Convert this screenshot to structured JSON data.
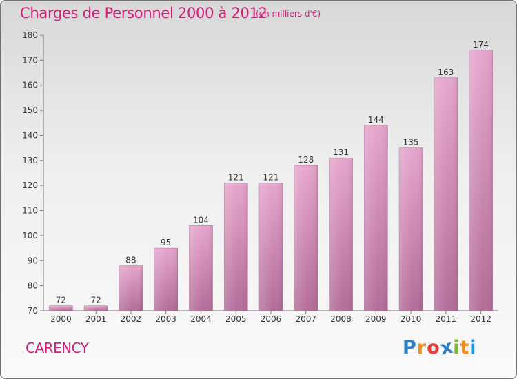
{
  "header": {
    "title": "Charges de Personnel 2000 à 2012",
    "subtitle": "(en milliers d'€)"
  },
  "footer": {
    "commune": "CARENCY",
    "logo_text": "Proxiti"
  },
  "colors": {
    "accent": "#d81b7a",
    "bar_top": "#e6a5cc",
    "bar_bottom": "#b26d98"
  },
  "chart_data": {
    "type": "bar",
    "title": "Charges de Personnel 2000 à 2012",
    "subtitle": "(en milliers d'€)",
    "xlabel": "",
    "ylabel": "",
    "categories": [
      "2000",
      "2001",
      "2002",
      "2003",
      "2004",
      "2005",
      "2006",
      "2007",
      "2008",
      "2009",
      "2010",
      "2011",
      "2012"
    ],
    "values": [
      72,
      72,
      88,
      95,
      104,
      121,
      121,
      128,
      131,
      144,
      135,
      163,
      174
    ],
    "ylim": [
      70,
      180
    ],
    "yticks": [
      70,
      80,
      90,
      100,
      110,
      120,
      130,
      140,
      150,
      160,
      170,
      180
    ],
    "grid": false,
    "legend": "none"
  }
}
